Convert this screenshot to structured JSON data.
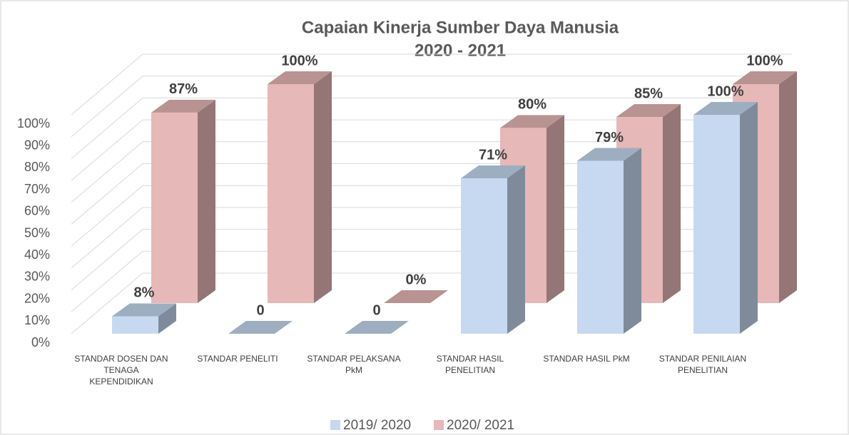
{
  "chart_data": {
    "type": "bar3d",
    "title": "Capaian Kinerja Sumber Daya Manusia",
    "subtitle": "2020 - 2021",
    "categories": [
      "STANDAR DOSEN DAN TENAGA KEPENDIDIKAN",
      "STANDAR PENELITI",
      "STANDAR PELAKSANA PkM",
      "STANDAR HASIL PENELITIAN",
      "STANDAR HASIL PkM",
      "STANDAR PENILAIAN PENELITIAN"
    ],
    "series": [
      {
        "name": "2019/ 2020",
        "color": "#c6d9f1",
        "values": [
          8,
          0,
          0,
          71,
          79,
          100
        ],
        "value_labels": [
          "8%",
          "0",
          "0",
          "71%",
          "79%",
          "100%"
        ]
      },
      {
        "name": "2020/ 2021",
        "color": "#e6b8b7",
        "values": [
          87,
          100,
          0,
          80,
          85,
          100
        ],
        "value_labels": [
          "87%",
          "100%",
          "0%",
          "80%",
          "85%",
          "100%"
        ]
      }
    ],
    "ylim": [
      0,
      100
    ],
    "yticks": [
      {
        "value": 0,
        "label": "0%"
      },
      {
        "value": 10,
        "label": "10%"
      },
      {
        "value": 20,
        "label": "20%"
      },
      {
        "value": 30,
        "label": "30%"
      },
      {
        "value": 40,
        "label": "40%"
      },
      {
        "value": 50,
        "label": "50%"
      },
      {
        "value": 60,
        "label": "60%"
      },
      {
        "value": 70,
        "label": "70%"
      },
      {
        "value": 80,
        "label": "80%"
      },
      {
        "value": 90,
        "label": "90%"
      },
      {
        "value": 100,
        "label": "100%"
      }
    ],
    "grid": true,
    "legend": "bottom"
  }
}
